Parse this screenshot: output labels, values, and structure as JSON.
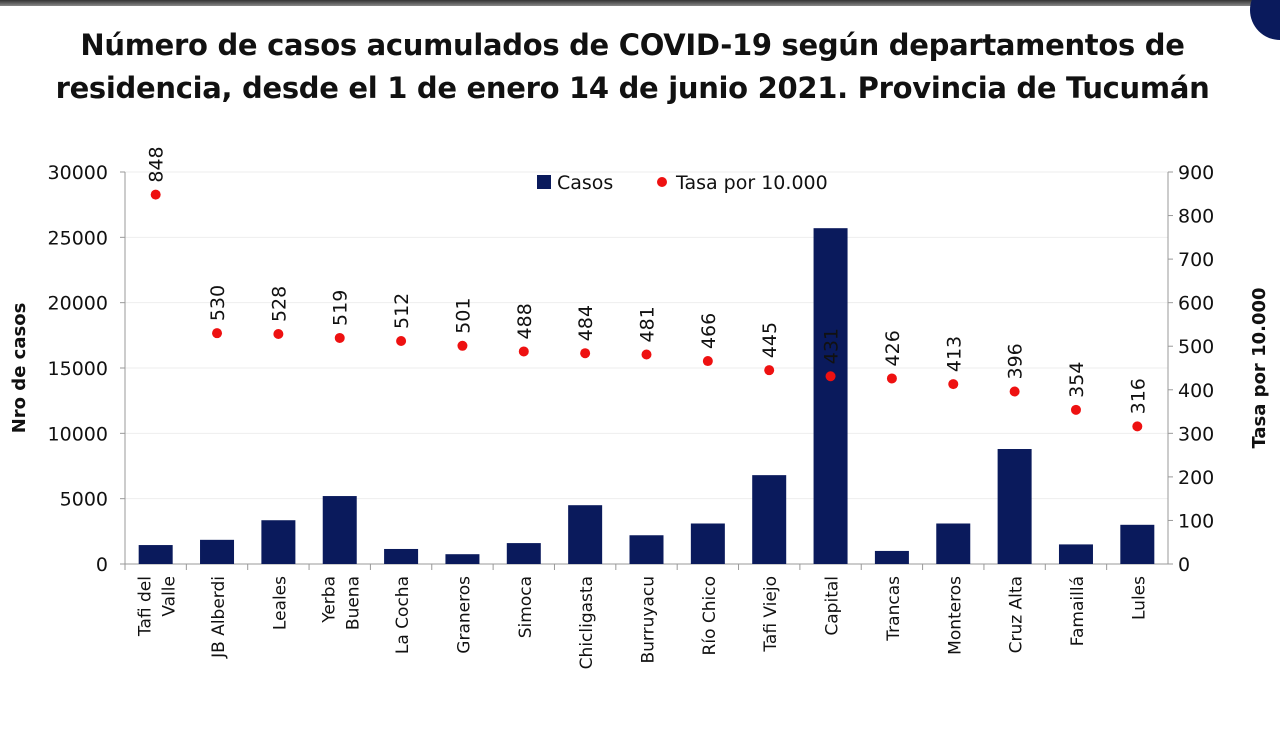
{
  "chart_data": {
    "type": "bar+scatter",
    "title": "Número de casos acumulados de COVID-19 según departamentos de residencia, desde el 1 de enero 14 de junio 2021. Provincia de Tucumán",
    "categories": [
      "Tafi del Valle",
      "JB Alberdi",
      "Leales",
      "Yerba Buena",
      "La Cocha",
      "Graneros",
      "Simoca",
      "Chicligasta",
      "Burruyacu",
      "Río Chico",
      "Tafi Viejo",
      "Capital",
      "Trancas",
      "Monteros",
      "Cruz Alta",
      "Famaillá",
      "Lules"
    ],
    "series": [
      {
        "name": "Casos",
        "type": "bar",
        "axis": "left",
        "color": "#0a1a5c",
        "values": [
          1450,
          1850,
          3350,
          5200,
          1150,
          750,
          1600,
          4500,
          2200,
          3100,
          6800,
          25700,
          1000,
          3100,
          8800,
          1500,
          3000
        ]
      },
      {
        "name": "Tasa por 10.000",
        "type": "scatter",
        "axis": "right",
        "color": "#ee1111",
        "values": [
          848,
          530,
          528,
          519,
          512,
          501,
          488,
          484,
          481,
          466,
          445,
          431,
          426,
          413,
          396,
          354,
          316
        ],
        "data_labels": [
          "848",
          "530",
          "528",
          "519",
          "512",
          "501",
          "488",
          "484",
          "481",
          "466",
          "445",
          "431",
          "426",
          "413",
          "396",
          "354",
          "316"
        ]
      }
    ],
    "ylabel": "Nro de casos",
    "ylim": [
      0,
      30000
    ],
    "yticks": [
      "0",
      "5000",
      "10000",
      "15000",
      "20000",
      "25000",
      "30000"
    ],
    "y2label": "Tasa por 10.000",
    "y2lim": [
      0,
      900
    ],
    "y2ticks": [
      "0",
      "100",
      "200",
      "300",
      "400",
      "500",
      "600",
      "700",
      "800",
      "900"
    ],
    "grid": true,
    "legend": "top-center"
  }
}
